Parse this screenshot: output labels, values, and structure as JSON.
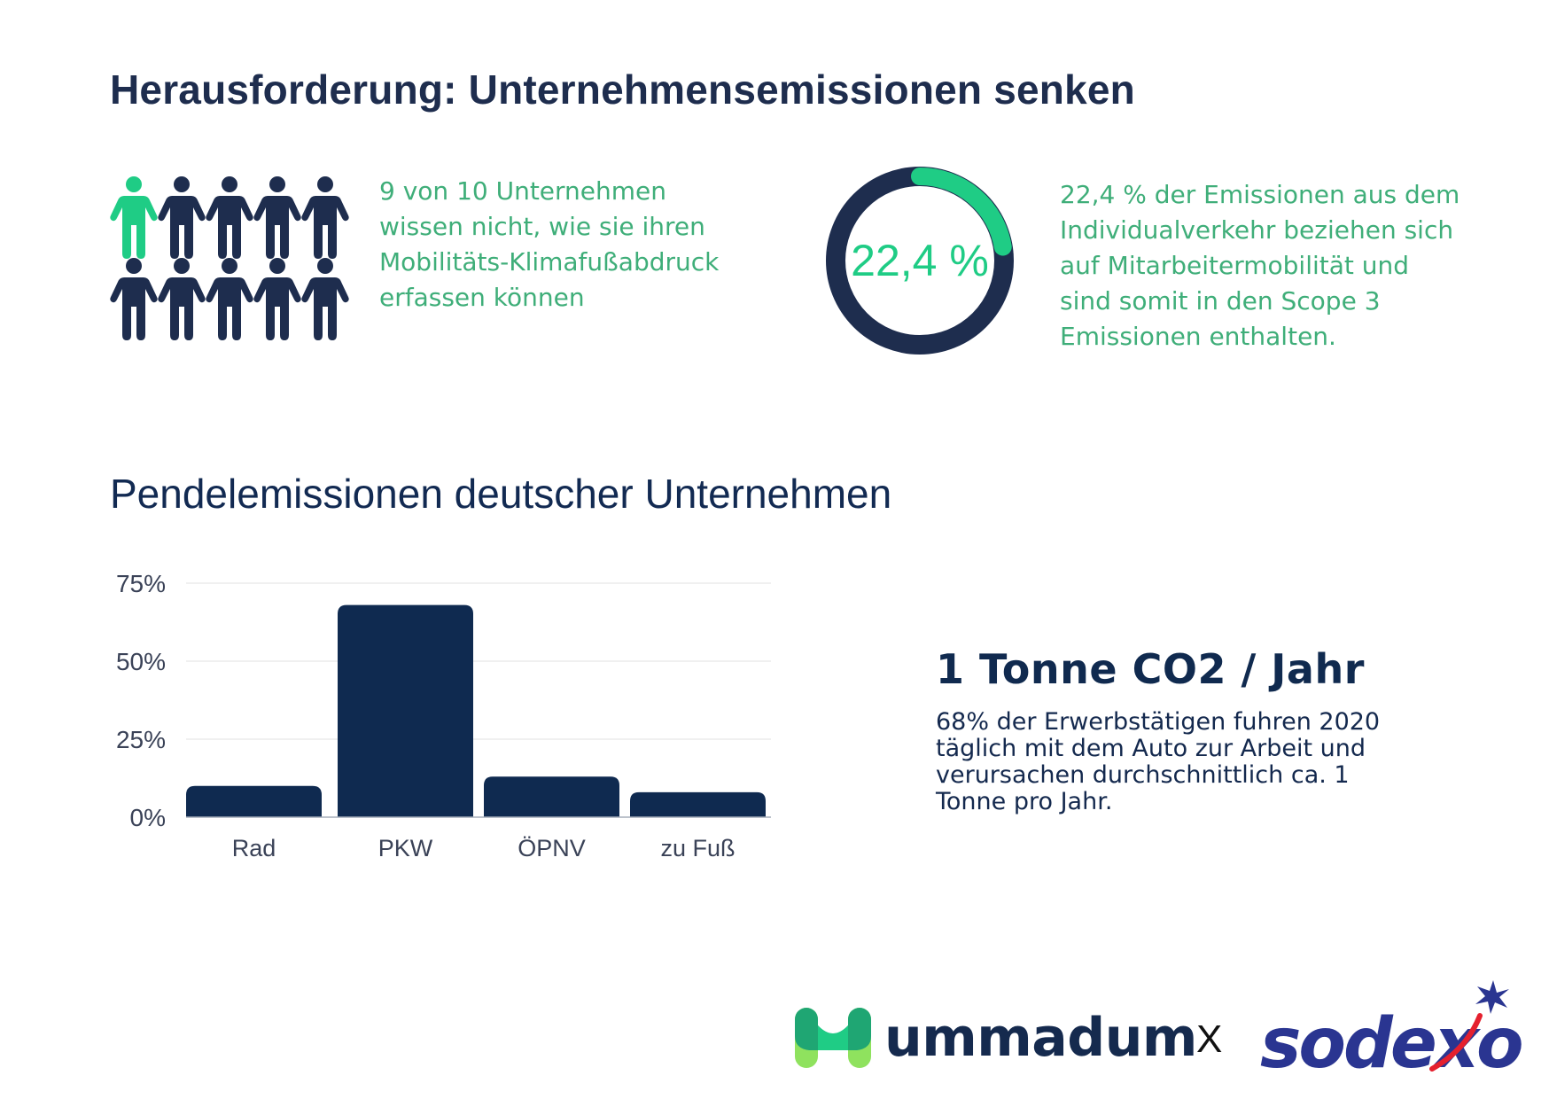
{
  "header": {
    "title": "Herausforderung: Unternehmensemissionen senken"
  },
  "people_stat": {
    "highlighted": 1,
    "total": 10,
    "icon": "person-icon",
    "highlight_color": "#1fcc85",
    "base_color": "#1e2d4e",
    "lines": [
      "9 von 10 Unternehmen",
      "wissen nicht, wie sie ihren",
      "Mobilitäts-Klimafußabdruck",
      "erfassen können"
    ]
  },
  "donut_stat": {
    "label": "22,4 %",
    "percent": 22.4,
    "ring_color": "#1e2d4e",
    "fill_color": "#1fcc85",
    "lines": [
      "22,4 % der Emissionen aus dem",
      "Individualverkehr beziehen sich",
      "auf Mitarbeitermobilität und",
      "sind somit in den Scope 3",
      "Emissionen enthalten."
    ]
  },
  "chart_data": {
    "type": "bar",
    "title": "Pendelemissionen deutscher Unternehmen",
    "xlabel": "",
    "ylabel": "",
    "categories": [
      "Rad",
      "PKW",
      "ÖPNV",
      "zu Fuß"
    ],
    "values": [
      10,
      68,
      13,
      8
    ],
    "unit": "%",
    "ylim": [
      0,
      75
    ],
    "yticks": [
      0,
      25,
      50,
      75
    ],
    "ytick_labels": [
      "0%",
      "25%",
      "50%",
      "75%"
    ],
    "grid": true,
    "bar_color": "#0f2a50",
    "legend": "none"
  },
  "callout": {
    "title": "1 Tonne CO2 / Jahr",
    "lines": [
      "68% der Erwerbstätigen fuhren 2020",
      "täglich mit dem Auto zur Arbeit und",
      "verursachen durchschnittlich ca. 1",
      "Tonne pro Jahr."
    ]
  },
  "footer": {
    "brand1": "ummadum",
    "separator": "X",
    "brand2": "sodexo"
  }
}
